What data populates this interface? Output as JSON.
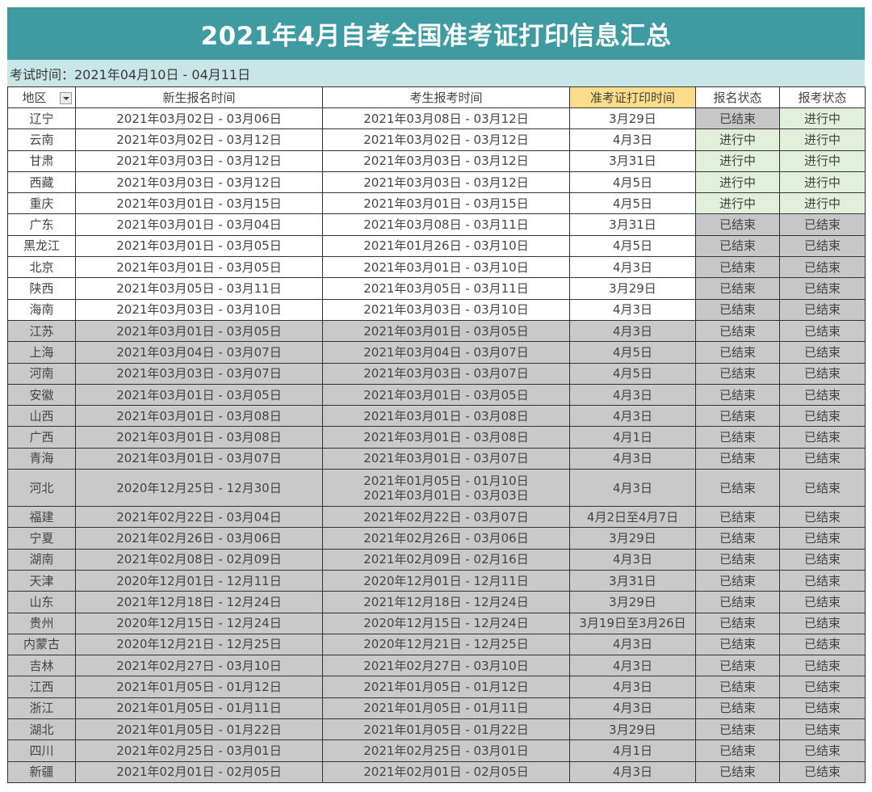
{
  "title": "2021年4月自考全国准考证打印信息汇总",
  "exam_time": "考试时间：2021年04月10日 - 04月11日",
  "colors": {
    "title_bg": "#3f9ba2",
    "subtitle_bg": "#c8e6e7",
    "print_col_bg": "#fde49a",
    "status_done_bg": "#c7c7c7",
    "status_active_bg": "#e2efda",
    "ended_row_bg": "#c9c9c9"
  },
  "table": {
    "headers": {
      "region": "地区",
      "new_reg": "新生报名时间",
      "exam_reg": "考生报考时间",
      "print_time": "准考证打印时间",
      "reg_status": "报名状态",
      "exam_status": "报考状态"
    },
    "region_filter_icon": "dropdown-filter-icon",
    "rows": [
      {
        "region": "辽宁",
        "new_reg": "2021年03月02日 - 03月06日",
        "exam_reg": [
          "2021年03月08日 - 03月12日"
        ],
        "print_time": "3月29日",
        "reg_status": "已结束",
        "exam_status": "进行中"
      },
      {
        "region": "云南",
        "new_reg": "2021年03月02日 - 03月12日",
        "exam_reg": [
          "2021年03月02日 - 03月12日"
        ],
        "print_time": "4月3日",
        "reg_status": "进行中",
        "exam_status": "进行中"
      },
      {
        "region": "甘肃",
        "new_reg": "2021年03月03日 - 03月12日",
        "exam_reg": [
          "2021年03月03日 - 03月12日"
        ],
        "print_time": "3月31日",
        "reg_status": "进行中",
        "exam_status": "进行中"
      },
      {
        "region": "西藏",
        "new_reg": "2021年03月03日 - 03月12日",
        "exam_reg": [
          "2021年03月03日 - 03月12日"
        ],
        "print_time": "4月5日",
        "reg_status": "进行中",
        "exam_status": "进行中"
      },
      {
        "region": "重庆",
        "new_reg": "2021年03月01日 - 03月15日",
        "exam_reg": [
          "2021年03月01日 - 03月15日"
        ],
        "print_time": "4月5日",
        "reg_status": "进行中",
        "exam_status": "进行中"
      },
      {
        "region": "广东",
        "new_reg": "2021年03月01日 - 03月04日",
        "exam_reg": [
          "2021年03月08日 - 03月11日"
        ],
        "print_time": "3月31日",
        "reg_status": "已结束",
        "exam_status": "已结束"
      },
      {
        "region": "黑龙江",
        "new_reg": "2021年03月01日 - 03月05日",
        "exam_reg": [
          "2021年01月26日 - 03月10日"
        ],
        "print_time": "4月5日",
        "reg_status": "已结束",
        "exam_status": "已结束"
      },
      {
        "region": "北京",
        "new_reg": "2021年03月01日 - 03月05日",
        "exam_reg": [
          "2021年03月01日 - 03月10日"
        ],
        "print_time": "4月3日",
        "reg_status": "已结束",
        "exam_status": "已结束"
      },
      {
        "region": "陕西",
        "new_reg": "2021年03月05日 - 03月11日",
        "exam_reg": [
          "2021年03月05日 - 03月11日"
        ],
        "print_time": "3月29日",
        "reg_status": "已结束",
        "exam_status": "已结束"
      },
      {
        "region": "海南",
        "new_reg": "2021年03月03日 - 03月10日",
        "exam_reg": [
          "2021年03月03日 - 03月10日"
        ],
        "print_time": "4月3日",
        "reg_status": "已结束",
        "exam_status": "已结束"
      },
      {
        "region": "江苏",
        "new_reg": "2021年03月01日 - 03月05日",
        "exam_reg": [
          "2021年03月01日 - 03月05日"
        ],
        "print_time": "4月3日",
        "reg_status": "已结束",
        "exam_status": "已结束"
      },
      {
        "region": "上海",
        "new_reg": "2021年03月04日 - 03月07日",
        "exam_reg": [
          "2021年03月04日 - 03月07日"
        ],
        "print_time": "4月5日",
        "reg_status": "已结束",
        "exam_status": "已结束"
      },
      {
        "region": "河南",
        "new_reg": "2021年03月03日 - 03月07日",
        "exam_reg": [
          "2021年03月03日 - 03月07日"
        ],
        "print_time": "4月5日",
        "reg_status": "已结束",
        "exam_status": "已结束"
      },
      {
        "region": "安徽",
        "new_reg": "2021年03月01日 - 03月05日",
        "exam_reg": [
          "2021年03月01日 - 03月05日"
        ],
        "print_time": "4月3日",
        "reg_status": "已结束",
        "exam_status": "已结束"
      },
      {
        "region": "山西",
        "new_reg": "2021年03月01日 - 03月08日",
        "exam_reg": [
          "2021年03月01日 - 03月08日"
        ],
        "print_time": "4月3日",
        "reg_status": "已结束",
        "exam_status": "已结束"
      },
      {
        "region": "广西",
        "new_reg": "2021年03月01日 - 03月08日",
        "exam_reg": [
          "2021年03月01日 - 03月08日"
        ],
        "print_time": "4月1日",
        "reg_status": "已结束",
        "exam_status": "已结束"
      },
      {
        "region": "青海",
        "new_reg": "2021年03月01日 - 03月07日",
        "exam_reg": [
          "2021年03月01日 - 03月07日"
        ],
        "print_time": "4月3日",
        "reg_status": "已结束",
        "exam_status": "已结束"
      },
      {
        "region": "河北",
        "new_reg": "2020年12月25日 - 12月30日",
        "exam_reg": [
          "2021年01月05日 - 01月10日",
          "2021年03月01日 - 03月03日"
        ],
        "print_time": "4月3日",
        "reg_status": "已结束",
        "exam_status": "已结束"
      },
      {
        "region": "福建",
        "new_reg": "2021年02月22日 - 03月04日",
        "exam_reg": [
          "2021年02月22日 - 03月07日"
        ],
        "print_time": "4月2日至4月7日",
        "reg_status": "已结束",
        "exam_status": "已结束"
      },
      {
        "region": "宁夏",
        "new_reg": "2021年02月26日 - 03月06日",
        "exam_reg": [
          "2021年02月26日 - 03月06日"
        ],
        "print_time": "3月29日",
        "reg_status": "已结束",
        "exam_status": "已结束"
      },
      {
        "region": "湖南",
        "new_reg": "2021年02月08日 - 02月09日",
        "exam_reg": [
          "2021年02月09日 - 02月16日"
        ],
        "print_time": "4月3日",
        "reg_status": "已结束",
        "exam_status": "已结束"
      },
      {
        "region": "天津",
        "new_reg": "2020年12月01日 - 12月11日",
        "exam_reg": [
          "2020年12月01日 - 12月11日"
        ],
        "print_time": "3月31日",
        "reg_status": "已结束",
        "exam_status": "已结束"
      },
      {
        "region": "山东",
        "new_reg": "2021年12月18日 - 12月24日",
        "exam_reg": [
          "2021年12月18日 - 12月24日"
        ],
        "print_time": "3月29日",
        "reg_status": "已结束",
        "exam_status": "已结束"
      },
      {
        "region": "贵州",
        "new_reg": "2020年12月15日 - 12月24日",
        "exam_reg": [
          "2020年12月15日 - 12月24日"
        ],
        "print_time": "3月19日至3月26日",
        "reg_status": "已结束",
        "exam_status": "已结束"
      },
      {
        "region": "内蒙古",
        "new_reg": "2020年12月21日 - 12月25日",
        "exam_reg": [
          "2020年12月21日 - 12月25日"
        ],
        "print_time": "4月3日",
        "reg_status": "已结束",
        "exam_status": "已结束"
      },
      {
        "region": "吉林",
        "new_reg": "2021年02月27日 - 03月10日",
        "exam_reg": [
          "2021年02月27日 - 03月10日"
        ],
        "print_time": "4月3日",
        "reg_status": "已结束",
        "exam_status": "已结束"
      },
      {
        "region": "江西",
        "new_reg": "2021年01月05日 - 01月12日",
        "exam_reg": [
          "2021年01月05日 - 01月12日"
        ],
        "print_time": "4月3日",
        "reg_status": "已结束",
        "exam_status": "已结束"
      },
      {
        "region": "浙江",
        "new_reg": "2021年01月05日 - 01月11日",
        "exam_reg": [
          "2021年01月05日 - 01月11日"
        ],
        "print_time": "4月3日",
        "reg_status": "已结束",
        "exam_status": "已结束"
      },
      {
        "region": "湖北",
        "new_reg": "2021年01月05日 - 01月22日",
        "exam_reg": [
          "2021年01月05日 - 01月22日"
        ],
        "print_time": "3月29日",
        "reg_status": "已结束",
        "exam_status": "已结束"
      },
      {
        "region": "四川",
        "new_reg": "2021年02月25日 - 03月01日",
        "exam_reg": [
          "2021年02月25日 - 03月01日"
        ],
        "print_time": "4月1日",
        "reg_status": "已结束",
        "exam_status": "已结束"
      },
      {
        "region": "新疆",
        "new_reg": "2021年02月01日 - 02月05日",
        "exam_reg": [
          "2021年02月01日 - 02月05日"
        ],
        "print_time": "4月3日",
        "reg_status": "已结束",
        "exam_status": "已结束"
      }
    ]
  }
}
